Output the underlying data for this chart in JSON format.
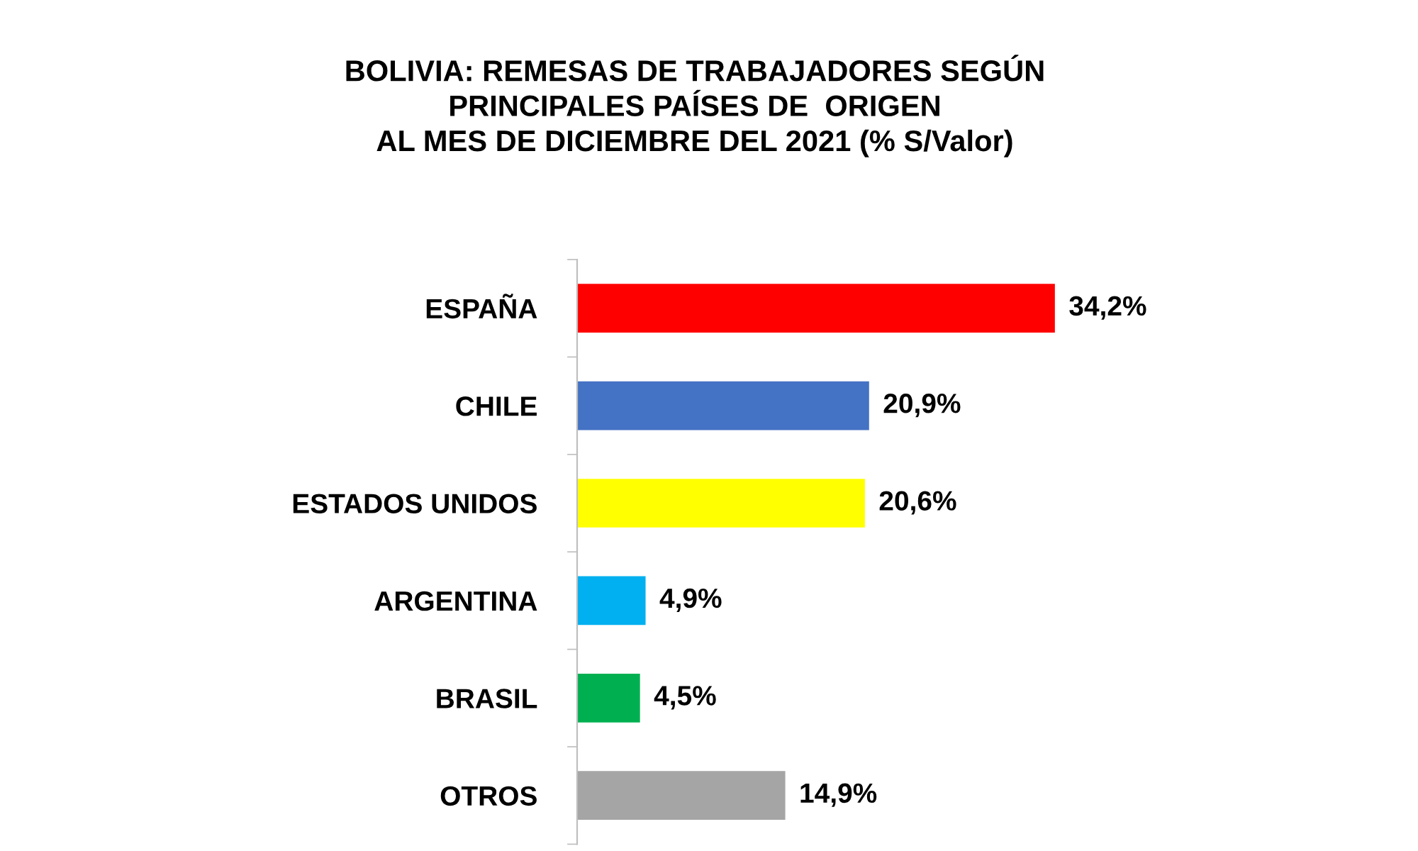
{
  "chart_data": {
    "type": "bar",
    "orientation": "horizontal",
    "title": "BOLIVIA: REMESAS DE TRABAJADORES SEGÚN\nPRINCIPALES PAÍSES DE  ORIGEN\nAL MES DE DICIEMBRE DEL 2021 (% S/Valor)",
    "categories": [
      "ESPAÑA",
      "CHILE",
      "ESTADOS UNIDOS",
      "ARGENTINA",
      "BRASIL",
      "OTROS"
    ],
    "values": [
      34.2,
      20.9,
      20.6,
      4.9,
      4.5,
      14.9
    ],
    "colors": [
      "#ff0000",
      "#4472c4",
      "#ffff00",
      "#00b0f0",
      "#00b050",
      "#a5a5a5"
    ],
    "value_labels": [
      "34,2%",
      "20,9%",
      "20,6%",
      "4,9%",
      "4,5%",
      "14,9%"
    ],
    "tick_labels": "y",
    "grid": false,
    "legend": false
  }
}
